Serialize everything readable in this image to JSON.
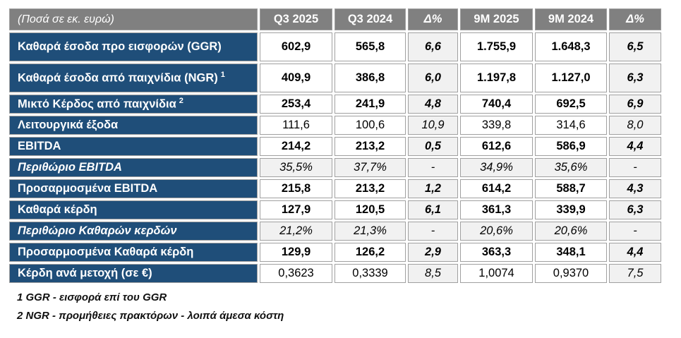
{
  "table": {
    "corner_label": "(Ποσά σε εκ. ευρώ)",
    "columns": [
      "Q3 2025",
      "Q3 2024",
      "Δ%",
      "9M 2025",
      "9M 2024",
      "Δ%"
    ],
    "delta_column_indexes": [
      2,
      5
    ],
    "rows": [
      {
        "label": "Καθαρά έσοδα προ εισφορών (GGR)",
        "sup": "",
        "style": "bold",
        "tall": true,
        "values": [
          "602,9",
          "565,8",
          "6,6",
          "1.755,9",
          "1.648,3",
          "6,5"
        ]
      },
      {
        "label": "Καθαρά έσοδα από παιχνίδια (NGR)",
        "sup": "1",
        "style": "bold",
        "tall": true,
        "values": [
          "409,9",
          "386,8",
          "6,0",
          "1.197,8",
          "1.127,0",
          "6,3"
        ]
      },
      {
        "label": "Μικτό Κέρδος από παιχνίδια",
        "sup": "2",
        "style": "bold",
        "tall": false,
        "values": [
          "253,4",
          "241,9",
          "4,8",
          "740,4",
          "692,5",
          "6,9"
        ]
      },
      {
        "label": "Λειτουργικά έξοδα",
        "sup": "",
        "style": "regular",
        "tall": false,
        "values": [
          "111,6",
          "100,6",
          "10,9",
          "339,8",
          "314,6",
          "8,0"
        ]
      },
      {
        "label": "EBITDA",
        "sup": "",
        "style": "bold",
        "tall": false,
        "values": [
          "214,2",
          "213,2",
          "0,5",
          "612,6",
          "586,9",
          "4,4"
        ]
      },
      {
        "label": "Περιθώριο EBITDA",
        "sup": "",
        "style": "margin",
        "tall": false,
        "values": [
          "35,5%",
          "37,7%",
          "-",
          "34,9%",
          "35,6%",
          "-"
        ]
      },
      {
        "label": "Προσαρμοσμένα EBITDA",
        "sup": "",
        "style": "bold",
        "tall": false,
        "values": [
          "215,8",
          "213,2",
          "1,2",
          "614,2",
          "588,7",
          "4,3"
        ]
      },
      {
        "label": "Καθαρά κέρδη",
        "sup": "",
        "style": "bold",
        "tall": false,
        "values": [
          "127,9",
          "120,5",
          "6,1",
          "361,3",
          "339,9",
          "6,3"
        ]
      },
      {
        "label": "Περιθώριο Καθαρών κερδών",
        "sup": "",
        "style": "margin",
        "tall": false,
        "values": [
          "21,2%",
          "21,3%",
          "-",
          "20,6%",
          "20,6%",
          "-"
        ]
      },
      {
        "label": "Προσαρμοσμένα Καθαρά κέρδη",
        "sup": "",
        "style": "bold",
        "tall": false,
        "values": [
          "129,9",
          "126,2",
          "2,9",
          "363,3",
          "348,1",
          "4,4"
        ]
      },
      {
        "label": "Κέρδη ανά μετοχή (σε €)",
        "sup": "",
        "style": "regular",
        "tall": false,
        "values": [
          "0,3623",
          "0,3339",
          "8,5",
          "1,0074",
          "0,9370",
          "7,5"
        ]
      }
    ],
    "footnotes": [
      "1 GGR - εισφορά επί του GGR",
      "2 NGR - προμήθειες πρακτόρων - λοιπά άμεσα κόστη"
    ],
    "colors": {
      "header_bg": "#808080",
      "label_bg": "#1F4E79",
      "shade_bg": "#F1F1F1",
      "border": "#A0A0A0",
      "header_text": "#FFFFFF",
      "value_text": "#000000"
    }
  }
}
